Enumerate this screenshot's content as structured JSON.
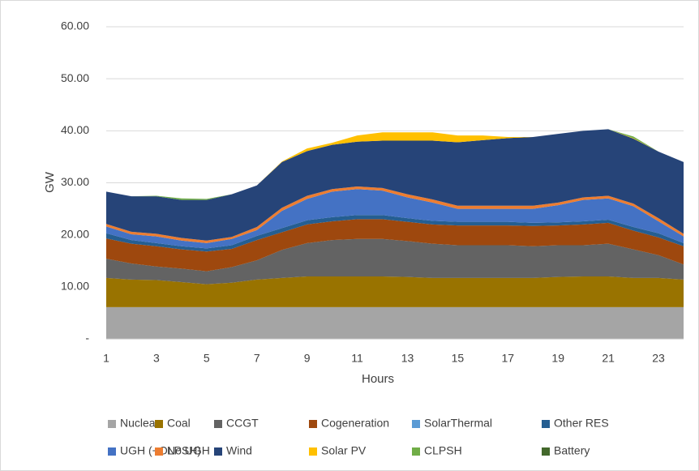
{
  "chart_data": {
    "type": "stacked_area",
    "y_label": "GW",
    "x_label": "Hours",
    "x": [
      1,
      2,
      3,
      4,
      5,
      6,
      7,
      8,
      9,
      10,
      11,
      12,
      13,
      14,
      15,
      16,
      17,
      18,
      19,
      20,
      21,
      22,
      23,
      24
    ],
    "xlim": [
      1,
      24
    ],
    "xticks": [
      1,
      3,
      5,
      7,
      9,
      11,
      13,
      15,
      17,
      19,
      21,
      23
    ],
    "ylim": [
      0,
      60
    ],
    "yticks": [
      {
        "value": 0,
        "label": "-"
      },
      {
        "value": 10,
        "label": "10.00"
      },
      {
        "value": 20,
        "label": "20.00"
      },
      {
        "value": 30,
        "label": "30.00"
      },
      {
        "value": 40,
        "label": "40.00"
      },
      {
        "value": 50,
        "label": "50.00"
      },
      {
        "value": 60,
        "label": "60.00"
      }
    ],
    "grid": true,
    "legend": "bottom",
    "series": [
      {
        "name": "Nuclear",
        "color": "#a5a5a5",
        "values": [
          6.1,
          6.1,
          6.1,
          6.1,
          6.1,
          6.1,
          6.1,
          6.1,
          6.1,
          6.1,
          6.1,
          6.1,
          6.1,
          6.1,
          6.1,
          6.1,
          6.1,
          6.1,
          6.1,
          6.1,
          6.1,
          6.1,
          6.1,
          6.1
        ]
      },
      {
        "name": "Coal",
        "color": "#997300",
        "values": [
          5.6,
          5.3,
          5.2,
          4.8,
          4.4,
          4.7,
          5.3,
          5.6,
          5.9,
          5.9,
          5.9,
          5.9,
          5.8,
          5.6,
          5.6,
          5.6,
          5.6,
          5.6,
          5.8,
          5.9,
          5.9,
          5.6,
          5.6,
          5.3
        ]
      },
      {
        "name": "CCGT",
        "color": "#636363",
        "values": [
          3.7,
          3.1,
          2.6,
          2.6,
          2.5,
          3.0,
          3.7,
          5.4,
          6.4,
          7.0,
          7.2,
          7.2,
          6.9,
          6.6,
          6.3,
          6.3,
          6.3,
          6.1,
          6.1,
          6.0,
          6.3,
          5.5,
          4.4,
          2.9
        ]
      },
      {
        "name": "Cogeneration",
        "color": "#9e480e",
        "values": [
          3.9,
          3.8,
          3.9,
          3.7,
          3.8,
          3.5,
          3.9,
          3.4,
          3.6,
          3.6,
          3.8,
          3.8,
          3.7,
          3.7,
          3.8,
          3.8,
          3.8,
          3.9,
          3.8,
          4.0,
          4.0,
          3.6,
          3.4,
          3.5
        ]
      },
      {
        "name": "SolarThermal",
        "color": "#5b9bd5",
        "values": [
          0,
          0,
          0,
          0,
          0,
          0,
          0,
          0,
          0,
          0,
          0,
          0,
          0,
          0,
          0,
          0,
          0,
          0,
          0,
          0,
          0,
          0,
          0,
          0
        ]
      },
      {
        "name": "Other RES",
        "color": "#255e91",
        "values": [
          1.0,
          0.7,
          0.6,
          0.6,
          0.6,
          0.7,
          0.8,
          0.8,
          0.8,
          0.8,
          0.8,
          0.8,
          0.7,
          0.7,
          0.7,
          0.7,
          0.7,
          0.6,
          0.6,
          0.6,
          0.6,
          0.7,
          0.8,
          0.6
        ]
      },
      {
        "name": "UGH (+OLPSH)",
        "color": "#4472c4",
        "values": [
          1.3,
          1.1,
          1.3,
          1.1,
          1.0,
          1.2,
          1.1,
          3.3,
          4.1,
          4.9,
          5.0,
          4.7,
          4.0,
          3.5,
          2.5,
          2.5,
          2.5,
          2.7,
          3.3,
          4.1,
          4.1,
          4.0,
          2.3,
          1.3
        ]
      },
      {
        "name": "No UGH",
        "color": "#ed7d31",
        "values": [
          0.5,
          0.5,
          0.5,
          0.5,
          0.5,
          0.4,
          0.6,
          0.6,
          0.6,
          0.5,
          0.5,
          0.5,
          0.6,
          0.6,
          0.6,
          0.6,
          0.6,
          0.6,
          0.5,
          0.5,
          0.5,
          0.5,
          0.6,
          0.5
        ]
      },
      {
        "name": "Wind",
        "color": "#264478",
        "values": [
          6.2,
          6.8,
          7.2,
          7.3,
          7.8,
          8.2,
          8.0,
          8.8,
          8.6,
          8.5,
          8.6,
          9.1,
          10.3,
          11.3,
          12.2,
          12.6,
          13.0,
          13.2,
          13.2,
          12.8,
          12.8,
          12.5,
          12.8,
          13.8
        ]
      },
      {
        "name": "Solar PV",
        "color": "#ffc000",
        "values": [
          0,
          0,
          0,
          0,
          0,
          0,
          0,
          0.1,
          0.5,
          0.4,
          1.2,
          1.6,
          1.6,
          1.6,
          1.3,
          0.9,
          0.2,
          0,
          0,
          0,
          0,
          0.1,
          0,
          0
        ]
      },
      {
        "name": "CLPSH",
        "color": "#70ad47",
        "values": [
          0,
          0,
          0.1,
          0.3,
          0.2,
          0,
          0,
          0,
          0,
          0,
          0,
          0,
          0,
          0,
          0,
          0,
          0,
          0,
          0,
          0,
          0,
          0.3,
          0,
          0
        ]
      },
      {
        "name": "Battery",
        "color": "#43682b",
        "values": [
          0,
          0,
          0,
          0,
          0,
          0,
          0,
          0,
          0,
          0,
          0,
          0,
          0,
          0,
          0,
          0,
          0,
          0,
          0,
          0,
          0,
          0,
          0,
          0
        ]
      }
    ]
  }
}
